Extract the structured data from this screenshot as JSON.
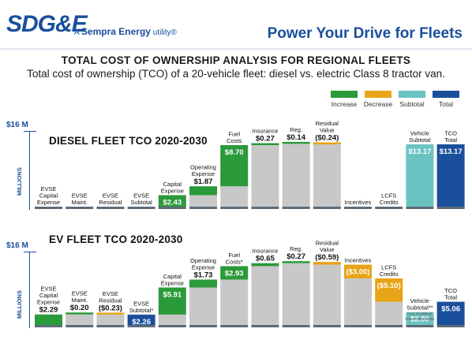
{
  "brand": {
    "logo": "SDG&E",
    "sempra_prefix": "A",
    "sempra_name": "Sempra Energy",
    "sempra_suffix": "utility®",
    "tagline": "Power Your Drive for Fleets"
  },
  "title": "TOTAL COST OF OWNERSHIP ANALYSIS FOR REGIONAL FLEETS",
  "subtitle": "Total cost of ownership (TCO) of a 20-vehicle fleet: diesel vs. electric Class 8 tractor van.",
  "legend": [
    {
      "label": "Increase",
      "color": "#2b9a3a"
    },
    {
      "label": "Decrease",
      "color": "#e8a417"
    },
    {
      "label": "Subtotal",
      "color": "#6bc3c1"
    },
    {
      "label": "Total",
      "color": "#1a4f9c"
    }
  ],
  "colors": {
    "increase": "#2b9a3a",
    "decrease": "#e8a417",
    "subtotal": "#6bc3c1",
    "total": "#1a4f9c",
    "base": "#c8c8c8",
    "baseline": "#5e6b78"
  },
  "chart_data": [
    {
      "type": "bar",
      "title": "DIESEL FLEET TCO 2020-2030",
      "ylabel": "MILLIONS",
      "ymax_label": "$16 M",
      "ylim": [
        0,
        16
      ],
      "categories": [
        "EVSE Capital Expense",
        "EVSE Maint.",
        "EVSE Residual",
        "EVSE Subtotal",
        "Capital Expense",
        "Operating Expense",
        "Fuel Costs",
        "Insurance",
        "Reg.",
        "Residual Value",
        "Incentives",
        "LCFS Credits",
        "Vehicle Subtotal",
        "TCO Total"
      ],
      "values": [
        0,
        0,
        0,
        0,
        2.43,
        1.87,
        8.7,
        0.27,
        0.14,
        -0.24,
        0,
        0,
        13.17,
        13.17
      ],
      "kinds": [
        "zero",
        "zero",
        "zero",
        "zero",
        "increase",
        "increase",
        "increase",
        "increase",
        "increase",
        "decrease",
        "zero",
        "zero",
        "subtotal",
        "total"
      ],
      "value_labels": [
        "",
        "",
        "",
        "",
        "$2.43",
        "$1.87",
        "$8.70",
        "$0.27",
        "$0.14",
        "($0.24)",
        "",
        "",
        "$13.17",
        "$13.17"
      ],
      "category_lines": [
        [
          "EVSE",
          "Capital",
          "Expense"
        ],
        [
          "EVSE",
          "Maint."
        ],
        [
          "EVSE",
          "Residual"
        ],
        [
          "EVSE",
          "Subtotal"
        ],
        [
          "Capital",
          "Expense"
        ],
        [
          "Operating",
          "Expense"
        ],
        [
          "Fuel",
          "Costs"
        ],
        [
          "Insurance"
        ],
        [
          "Reg."
        ],
        [
          "Residual",
          "Value"
        ],
        [
          "Incentives"
        ],
        [
          "LCFS",
          "Credits"
        ],
        [
          "Vehicle",
          "Subtotal"
        ],
        [
          "TCO",
          "Total"
        ]
      ],
      "notes": [
        "",
        "",
        "",
        "",
        "",
        "",
        "",
        "",
        "",
        "",
        "",
        "",
        "",
        ""
      ]
    },
    {
      "type": "bar",
      "title": "EV FLEET TCO 2020-2030",
      "ylabel": "MILLIONS",
      "ymax_label": "$16 M",
      "ylim": [
        0,
        16
      ],
      "categories": [
        "EVSE Capital Expense",
        "EVSE Maint.",
        "EVSE Residual",
        "EVSE Subtotal*",
        "Capital Expense",
        "Operating Expense",
        "Fuel Costs*",
        "Insurance",
        "Reg.",
        "Residual Value",
        "Incentives",
        "LCFS Credits",
        "Vehicle Subtotal**",
        "TCO Total"
      ],
      "values": [
        2.29,
        0.2,
        -0.23,
        2.26,
        5.91,
        1.73,
        2.93,
        0.65,
        0.27,
        -0.59,
        -3.0,
        -5.1,
        2.8,
        5.06
      ],
      "kinds": [
        "increase",
        "increase",
        "decrease",
        "total",
        "increase",
        "increase",
        "increase",
        "increase",
        "increase",
        "decrease",
        "decrease",
        "decrease",
        "subtotal",
        "total"
      ],
      "value_labels": [
        "$2.29",
        "$0.20",
        "($0.23)",
        "$2.26",
        "$5.91",
        "$1.73",
        "$2.93",
        "$0.65",
        "$0.27",
        "($0.59)",
        "($3.00)",
        "($5.10)",
        "$2.80",
        "$5.06"
      ],
      "category_lines": [
        [
          "EVSE",
          "Capital",
          "Expense"
        ],
        [
          "EVSE",
          "Maint."
        ],
        [
          "EVSE",
          "Residual"
        ],
        [
          "EVSE",
          "Subtotal*"
        ],
        [
          "Capital",
          "Expense"
        ],
        [
          "Operating",
          "Expense"
        ],
        [
          "Fuel",
          "Costs*"
        ],
        [
          "Insurance"
        ],
        [
          "Reg."
        ],
        [
          "Residual",
          "Value"
        ],
        [
          "Incentives"
        ],
        [
          "LCFS",
          "Credits"
        ],
        [
          "Vehicle",
          "Subtotal**"
        ],
        [
          "TCO",
          "Total"
        ]
      ],
      "notes": [
        "",
        "",
        "",
        "",
        "",
        "",
        "",
        "",
        "",
        "",
        "",
        "",
        "cost of vehicle minus incentives",
        ""
      ]
    }
  ]
}
